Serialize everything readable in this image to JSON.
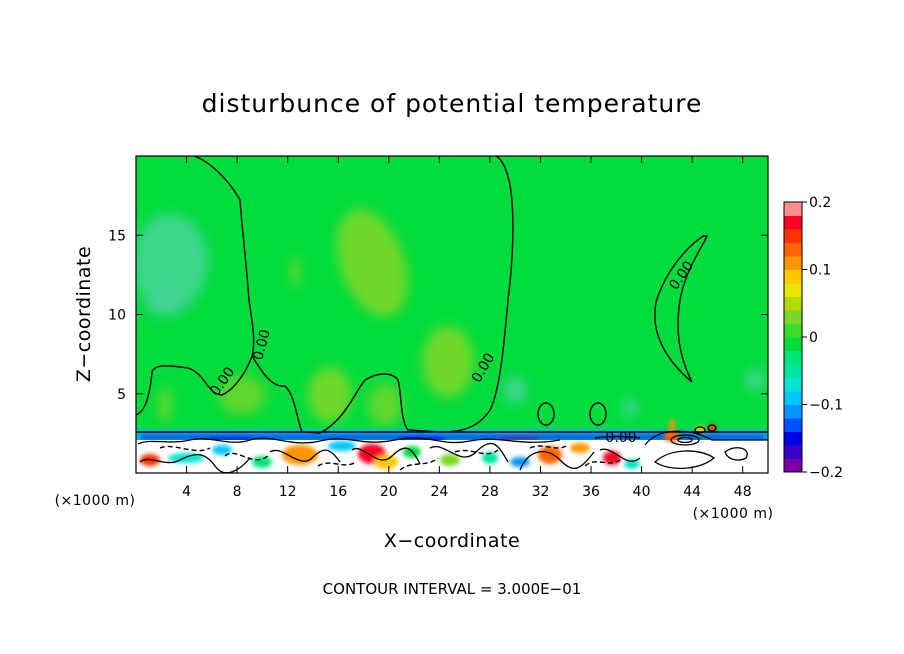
{
  "chart_data": {
    "type": "heatmap",
    "title": "disturbunce of potential temperature",
    "xlabel": "X−coordinate",
    "ylabel": "Z−coordinate",
    "x_unit_left": "(×1000 m)",
    "x_unit_right": "(×1000 m)",
    "xlim": [
      0,
      50
    ],
    "ylim": [
      0,
      20
    ],
    "xticks": [
      4,
      8,
      12,
      16,
      20,
      24,
      28,
      32,
      36,
      40,
      44,
      48
    ],
    "yticks": [
      5,
      10,
      15
    ],
    "colorbar": {
      "min": -0.2,
      "max": 0.2,
      "ticks": [
        "0.2",
        "0.1",
        "0",
        "−0.1",
        "−0.2"
      ],
      "tick_values": [
        0.2,
        0.1,
        0,
        -0.1,
        -0.2
      ],
      "colors": [
        "#7a00a8",
        "#3a00c8",
        "#0000e6",
        "#0050ff",
        "#0096ff",
        "#00c8ff",
        "#00e6d2",
        "#00e6a0",
        "#00e678",
        "#00dc3c",
        "#3cdc28",
        "#7ad728",
        "#b4dc00",
        "#e6e600",
        "#ffc800",
        "#ff9600",
        "#ff6400",
        "#ff3200",
        "#ff0028",
        "#ff8c8c"
      ]
    },
    "background_value": 0.0,
    "contour_label": "0.00",
    "contour_interval_text": "CONTOUR INTERVAL = 3.000E−01"
  }
}
